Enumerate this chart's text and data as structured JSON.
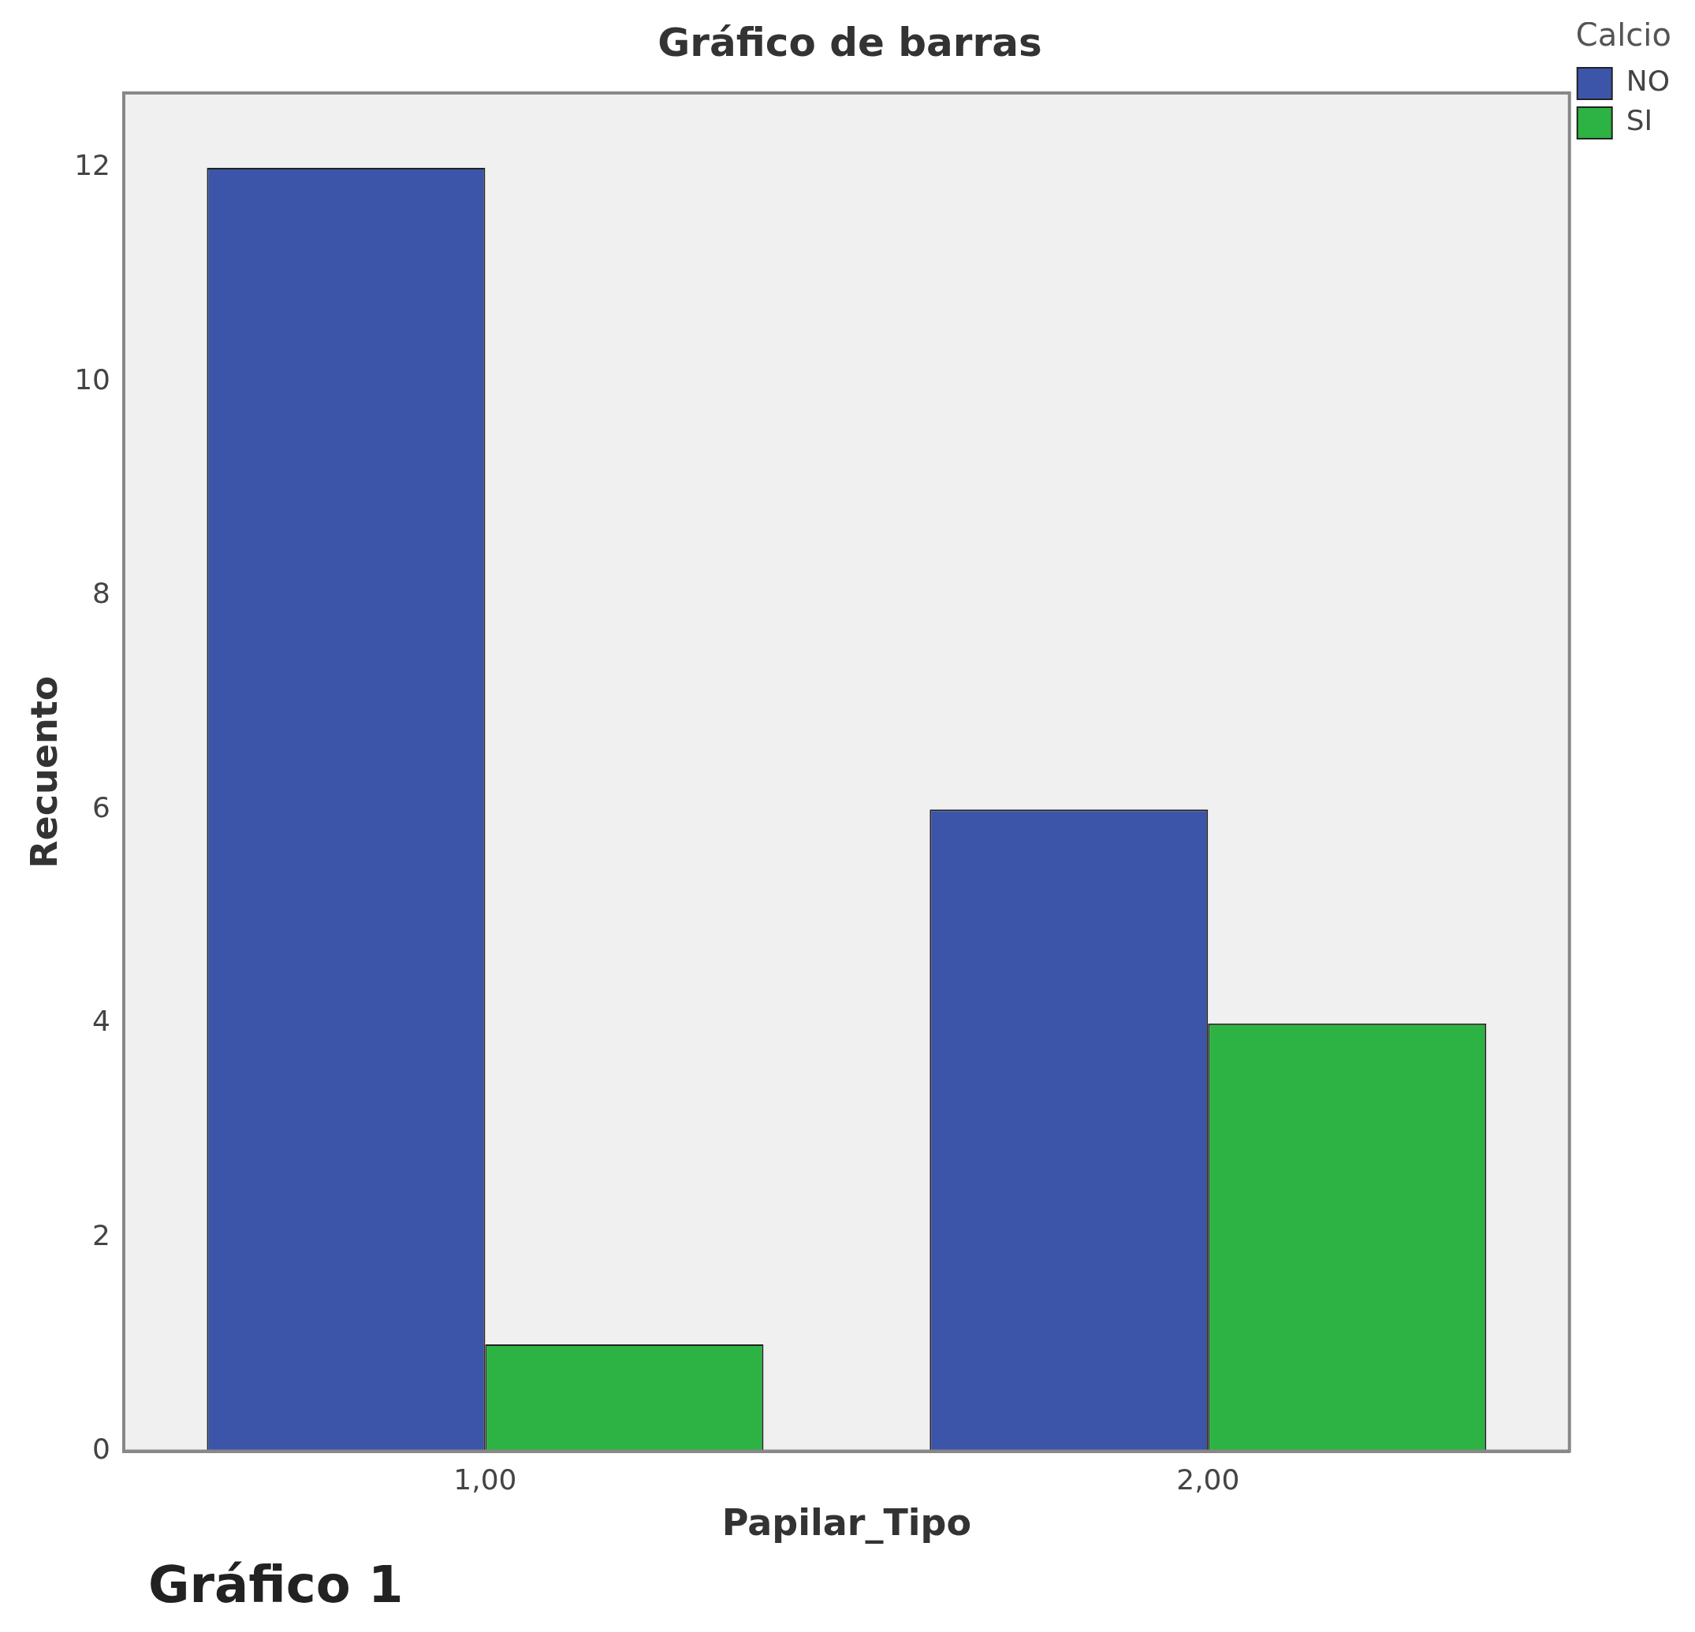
{
  "chart_data": {
    "type": "bar",
    "title": "Gráfico de barras",
    "xlabel": "Papilar_Tipo",
    "ylabel": "Recuento",
    "legend_title": "Calcio",
    "categories": [
      "1,00",
      "2,00"
    ],
    "series": [
      {
        "name": "NO",
        "color": "#3d55a8",
        "values": [
          12,
          6
        ]
      },
      {
        "name": "SI",
        "color": "#2db343",
        "values": [
          1,
          4
        ]
      }
    ],
    "ylim": [
      0,
      12.7
    ],
    "yticks": [
      0,
      2,
      4,
      6,
      8,
      10,
      12
    ],
    "grid": false,
    "legend": "top right",
    "annotations": [
      "Gráfico 1"
    ]
  }
}
